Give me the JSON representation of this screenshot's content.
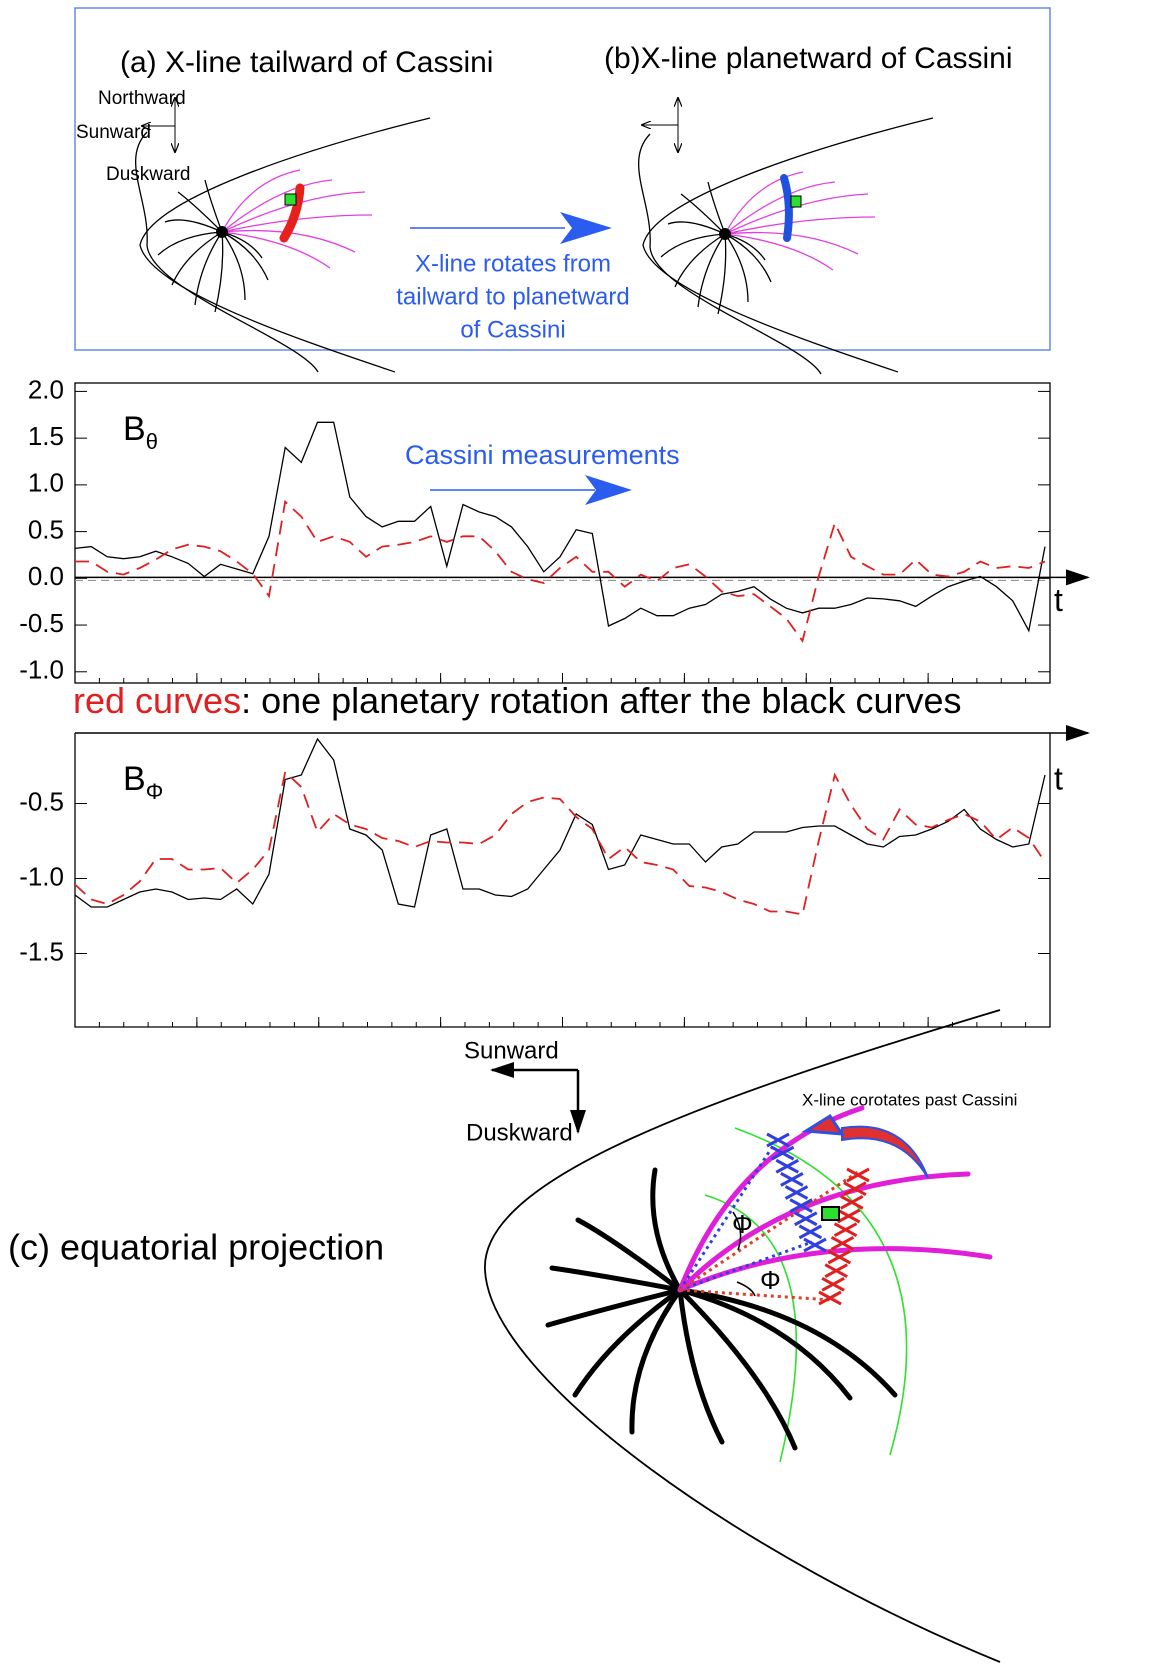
{
  "top_diagram": {
    "panel_a_title": "(a) X-line tailward of Cassini",
    "panel_b_title": "(b)X-line planetward of Cassini",
    "northward": "Northward",
    "sunward": "Sunward",
    "duskward": "Duskward",
    "rotation_note": [
      "X-line rotates from",
      "tailward to planetward",
      "of Cassini"
    ]
  },
  "chart_data": [
    {
      "type": "line",
      "ylabel": "B",
      "ylabel_subscript": "θ",
      "axis_label": "t",
      "annotation": "Cassini measurements",
      "axis_arrow": "zero",
      "ylim": [
        -1.12,
        2.09
      ],
      "yticks": [
        {
          "value": -1.0,
          "label": "-1.0"
        },
        -0.5,
        {
          "value": 0,
          "label": "0.0"
        },
        0.5,
        {
          "value": 1,
          "label": "1.0"
        },
        1.5,
        {
          "value": 2,
          "label": "2.0"
        }
      ],
      "series": [
        {
          "color": "#000000",
          "dashed": false,
          "values": [
            0.32,
            0.34,
            0.23,
            0.21,
            0.23,
            0.29,
            0.23,
            0.16,
            0.02,
            0.15,
            0.1,
            0.05,
            0.45,
            1.4,
            1.24,
            1.67,
            1.67,
            0.87,
            0.66,
            0.55,
            0.61,
            0.61,
            0.77,
            0.13,
            0.79,
            0.71,
            0.66,
            0.55,
            0.34,
            0.07,
            0.23,
            0.52,
            0.48,
            -0.51,
            -0.43,
            -0.32,
            -0.4,
            -0.4,
            -0.32,
            -0.28,
            -0.17,
            -0.14,
            -0.09,
            -0.22,
            -0.32,
            -0.37,
            -0.32,
            -0.32,
            -0.28,
            -0.21,
            -0.22,
            -0.24,
            -0.3,
            -0.19,
            -0.09,
            -0.03,
            0.02,
            -0.09,
            -0.24,
            -0.56,
            0.34
          ]
        },
        {
          "color": "#e02020",
          "dashed": true,
          "values": [
            0.18,
            0.18,
            0.07,
            0.04,
            0.11,
            0.2,
            0.31,
            0.36,
            0.34,
            0.29,
            0.18,
            0.05,
            -0.19,
            0.82,
            0.66,
            0.39,
            0.45,
            0.39,
            0.23,
            0.34,
            0.36,
            0.39,
            0.45,
            0.39,
            0.45,
            0.45,
            0.29,
            0.07,
            -0.01,
            -0.05,
            0.11,
            0.23,
            0.07,
            0.07,
            -0.09,
            0.04,
            -0.03,
            0.11,
            0.15,
            0.02,
            -0.14,
            -0.19,
            -0.17,
            -0.3,
            -0.43,
            -0.67,
            0.02,
            0.59,
            0.23,
            0.13,
            0.04,
            0.04,
            0.2,
            0.04,
            0.02,
            0.07,
            0.18,
            0.11,
            0.13,
            0.11,
            0.18
          ]
        }
      ]
    },
    {
      "type": "line",
      "ylabel": "B",
      "ylabel_subscript": "Φ",
      "axis_label": "t",
      "axis_arrow": "top",
      "ylim": [
        -1.99,
        -0.03
      ],
      "yticks": [
        -1.5,
        {
          "value": -1.0,
          "label": "-1.0"
        },
        -0.5
      ],
      "series": [
        {
          "color": "#000000",
          "dashed": false,
          "values": [
            -1.11,
            -1.19,
            -1.19,
            -1.14,
            -1.09,
            -1.07,
            -1.09,
            -1.14,
            -1.13,
            -1.14,
            -1.07,
            -1.17,
            -0.97,
            -0.34,
            -0.31,
            -0.07,
            -0.21,
            -0.67,
            -0.71,
            -0.81,
            -1.17,
            -1.19,
            -0.71,
            -0.67,
            -1.07,
            -1.07,
            -1.11,
            -1.12,
            -1.07,
            -0.94,
            -0.81,
            -0.57,
            -0.64,
            -0.94,
            -0.91,
            -0.71,
            -0.74,
            -0.77,
            -0.77,
            -0.89,
            -0.79,
            -0.77,
            -0.69,
            -0.69,
            -0.69,
            -0.66,
            -0.65,
            -0.65,
            -0.71,
            -0.77,
            -0.79,
            -0.72,
            -0.71,
            -0.67,
            -0.62,
            -0.54,
            -0.67,
            -0.74,
            -0.79,
            -0.77,
            -0.31
          ]
        },
        {
          "color": "#e02020",
          "dashed": true,
          "values": [
            -1.04,
            -1.14,
            -1.17,
            -1.11,
            -1.02,
            -0.87,
            -0.87,
            -0.94,
            -0.94,
            -0.93,
            -1.03,
            -0.94,
            -0.81,
            -0.29,
            -0.39,
            -0.69,
            -0.57,
            -0.64,
            -0.67,
            -0.73,
            -0.75,
            -0.79,
            -0.75,
            -0.76,
            -0.76,
            -0.77,
            -0.71,
            -0.57,
            -0.49,
            -0.46,
            -0.47,
            -0.59,
            -0.67,
            -0.87,
            -0.79,
            -0.89,
            -0.91,
            -0.94,
            -1.05,
            -1.06,
            -1.09,
            -1.14,
            -1.17,
            -1.22,
            -1.22,
            -1.24,
            -0.75,
            -0.31,
            -0.51,
            -0.67,
            -0.74,
            -0.54,
            -0.64,
            -0.66,
            -0.61,
            -0.57,
            -0.62,
            -0.74,
            -0.66,
            -0.73,
            -0.89
          ]
        }
      ]
    }
  ],
  "caption": {
    "highlight": "red curves",
    "rest": ": one planetary rotation after the black curves"
  },
  "bottom_diagram": {
    "sunward": "Sunward",
    "duskward": "Duskward",
    "corotation_note": "X-line corotates past Cassini",
    "angle_1": "Φ",
    "angle_2": "Φ",
    "panel_c_title": "(c) equatorial projection"
  }
}
